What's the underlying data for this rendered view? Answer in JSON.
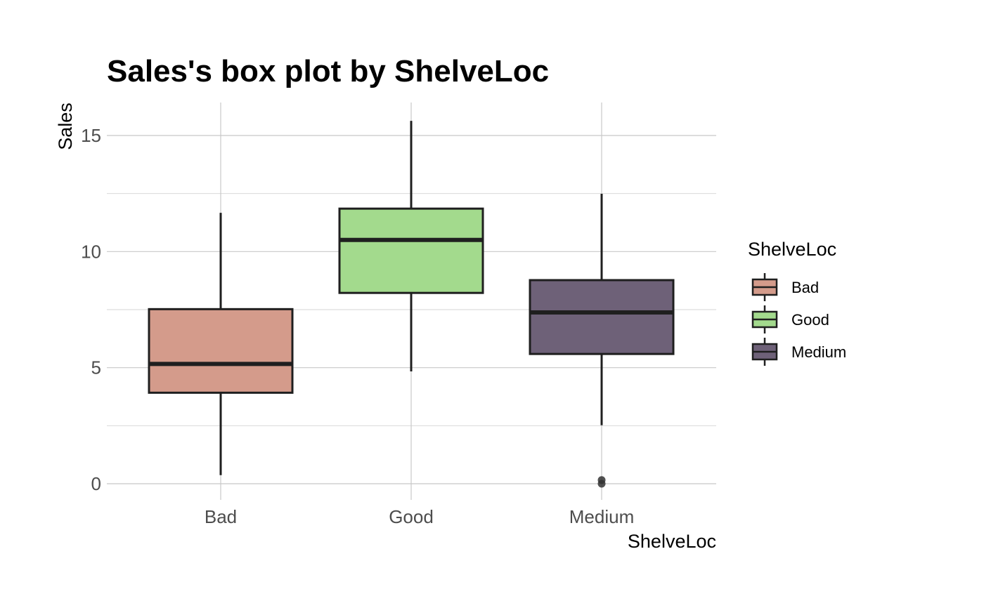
{
  "chart_data": {
    "type": "box",
    "title": "Sales's box plot by ShelveLoc",
    "xlabel": "ShelveLoc",
    "ylabel": "Sales",
    "categories": [
      "Bad",
      "Good",
      "Medium"
    ],
    "yticks": [
      0,
      5,
      10,
      15
    ],
    "ylim": [
      -0.6,
      16.3
    ],
    "grid": true,
    "legend": {
      "title": "ShelveLoc",
      "position": "right",
      "entries": [
        "Bad",
        "Good",
        "Medium"
      ]
    },
    "colors": {
      "Bad": "#d49b8b",
      "Good": "#a3da8d",
      "Medium": "#6e6178",
      "outline": "#1f1f1f"
    },
    "boxes": [
      {
        "category": "Bad",
        "whisker_low": 0.37,
        "q1": 3.92,
        "median": 5.16,
        "q3": 7.52,
        "whisker_high": 11.67,
        "outliers": []
      },
      {
        "category": "Good",
        "whisker_low": 4.84,
        "q1": 8.22,
        "median": 10.5,
        "q3": 11.85,
        "whisker_high": 15.63,
        "outliers": []
      },
      {
        "category": "Medium",
        "whisker_low": 2.52,
        "q1": 5.59,
        "median": 7.38,
        "q3": 8.77,
        "whisker_high": 12.49,
        "outliers": [
          0.0,
          0.16
        ]
      }
    ]
  }
}
